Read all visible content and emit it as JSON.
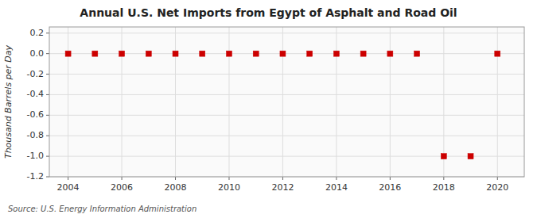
{
  "chart_data": {
    "type": "scatter",
    "title": "Annual U.S. Net Imports from Egypt of Asphalt and Road Oil",
    "ylabel": "Thousand Barrels per Day",
    "annotations": [
      "Source: U.S. Energy Information Administration"
    ],
    "x": [
      2004,
      2005,
      2006,
      2007,
      2008,
      2009,
      2010,
      2011,
      2012,
      2013,
      2014,
      2015,
      2016,
      2017,
      2018,
      2019,
      2020
    ],
    "values": [
      0,
      0,
      0,
      0,
      0,
      0,
      0,
      0,
      0,
      0,
      0,
      0,
      0,
      0,
      -1,
      -1,
      0
    ],
    "color": "#cc0000",
    "marker": "square",
    "xlim": [
      2003.3,
      2021.0
    ],
    "ylim": [
      -1.2,
      0.26
    ],
    "xticks": [
      2004,
      2006,
      2008,
      2010,
      2012,
      2014,
      2016,
      2018,
      2020
    ],
    "yticks": [
      0.2,
      {
        "value": 0.0,
        "label": "0.0"
      },
      -0.2,
      -0.4,
      -0.6,
      -0.8,
      {
        "value": -1.0,
        "label": "-1.0"
      },
      -1.2
    ],
    "grid": true
  }
}
